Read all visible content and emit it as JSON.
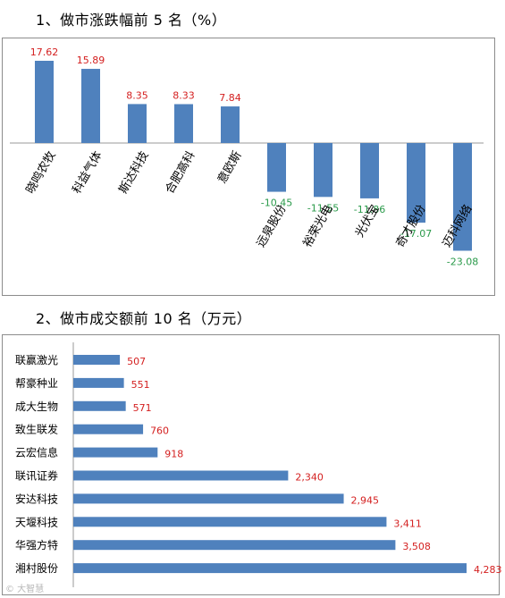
{
  "headings": {
    "chart1": "1、做市涨跌幅前 5 名（%）",
    "chart2": "2、做市成交额前 10 名（万元）"
  },
  "colors": {
    "bar": "#4f81bd",
    "positive_label": "#d42020",
    "negative_label": "#2a9a4a",
    "value_label_chart2": "#d42020"
  },
  "watermark": "© 大智慧",
  "chart_data": [
    {
      "type": "bar",
      "title": "1、做市涨跌幅前 5 名（%）",
      "categories": [
        "晓鸣农牧",
        "科益气体",
        "斯达科技",
        "合肥高科",
        "意欧斯",
        "远泉股份",
        "裕荣光电",
        "光伏宝",
        "奇才股份",
        "迈科网络"
      ],
      "values": [
        17.62,
        15.89,
        8.35,
        8.33,
        7.84,
        -10.45,
        -11.55,
        -11.86,
        -17.07,
        -23.08
      ],
      "value_labels": [
        "17.62",
        "15.89",
        "8.35",
        "8.33",
        "7.84",
        "-10.45",
        "-11.55",
        "-11.86",
        "-17.07",
        "-23.08"
      ],
      "ylim": [
        -25,
        20
      ],
      "grid": false,
      "legend": "none"
    },
    {
      "type": "bar",
      "orientation": "horizontal",
      "title": "2、做市成交额前 10 名（万元）",
      "categories": [
        "联赢激光",
        "帮豪种业",
        "成大生物",
        "致生联发",
        "云宏信息",
        "联讯证券",
        "安达科技",
        "天堰科技",
        "华强方特",
        "湘村股份"
      ],
      "values": [
        507,
        551,
        571,
        760,
        918,
        2340,
        2945,
        3411,
        3508,
        4283
      ],
      "value_labels": [
        "507",
        "551",
        "571",
        "760",
        "918",
        "2,340",
        "2,945",
        "3,411",
        "3,508",
        "4,283"
      ],
      "xlim": [
        0,
        4283
      ],
      "grid": false,
      "legend": "none"
    }
  ]
}
